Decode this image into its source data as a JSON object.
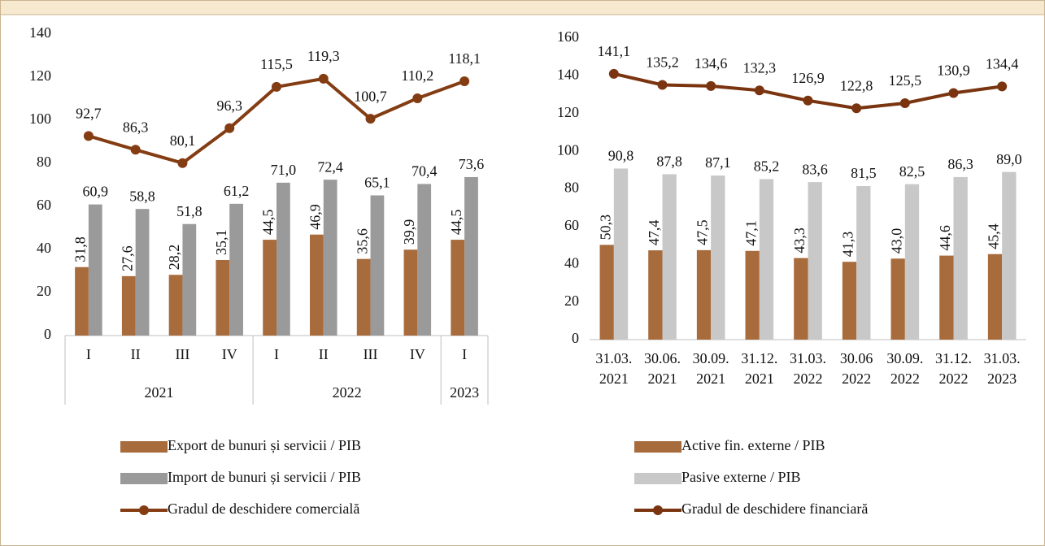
{
  "chart_data": [
    {
      "type": "combo",
      "categories": [
        "I",
        "II",
        "III",
        "IV",
        "I",
        "II",
        "III",
        "IV",
        "I"
      ],
      "groups": [
        {
          "label": "2021",
          "span": 4
        },
        {
          "label": "2022",
          "span": 4
        },
        {
          "label": "2023",
          "span": 1
        }
      ],
      "ylim": [
        0,
        140
      ],
      "yticks": [
        0,
        20,
        40,
        60,
        80,
        100,
        120,
        140
      ],
      "legend": "bottom",
      "series": [
        {
          "name": "Export de bunuri și servicii / PIB",
          "type": "bar",
          "color": "#a86b3c",
          "values": [
            31.8,
            27.6,
            28.2,
            35.1,
            44.5,
            46.9,
            35.6,
            39.9,
            44.5
          ],
          "value_labels": [
            "31,8",
            "27,6",
            "28,2",
            "35,1",
            "44,5",
            "46,9",
            "35,6",
            "39,9",
            "44,5"
          ]
        },
        {
          "name": "Import de bunuri și servicii / PIB",
          "type": "bar",
          "color": "#9a9a9a",
          "values": [
            60.9,
            58.8,
            51.8,
            61.2,
            71.0,
            72.4,
            65.1,
            70.4,
            73.6
          ],
          "value_labels": [
            "60,9",
            "58,8",
            "51,8",
            "61,2",
            "71,0",
            "72,4",
            "65,1",
            "70,4",
            "73,6"
          ]
        },
        {
          "name": "Gradul de deschidere comercială",
          "type": "line",
          "color": "#843c12",
          "values": [
            92.7,
            86.3,
            80.1,
            96.3,
            115.5,
            119.3,
            100.7,
            110.2,
            118.1
          ],
          "value_labels": [
            "92,7",
            "86,3",
            "80,1",
            "96,3",
            "115,5",
            "119,3",
            "100,7",
            "110,2",
            "118,1"
          ]
        }
      ]
    },
    {
      "type": "combo",
      "categories": [
        [
          "31.03.",
          "2021"
        ],
        [
          "30.06.",
          "2021"
        ],
        [
          "30.09.",
          "2021"
        ],
        [
          "31.12.",
          "2021"
        ],
        [
          "31.03.",
          "2022"
        ],
        [
          "30.06",
          "2022"
        ],
        [
          "30.09.",
          "2022"
        ],
        [
          "31.12.",
          "2022"
        ],
        [
          "31.03.",
          "2023"
        ]
      ],
      "ylim": [
        0,
        160
      ],
      "yticks": [
        0,
        20,
        40,
        60,
        80,
        100,
        120,
        140,
        160
      ],
      "legend": "bottom",
      "series": [
        {
          "name": "Active fin. externe / PIB",
          "type": "bar",
          "color": "#a86b3c",
          "values": [
            50.3,
            47.4,
            47.5,
            47.1,
            43.3,
            41.3,
            43.0,
            44.6,
            45.4
          ],
          "value_labels": [
            "50,3",
            "47,4",
            "47,5",
            "47,1",
            "43,3",
            "41,3",
            "43,0",
            "44,6",
            "45,4"
          ]
        },
        {
          "name": "Pasive externe / PIB",
          "type": "bar",
          "color": "#c8c8c8",
          "values": [
            90.8,
            87.8,
            87.1,
            85.2,
            83.6,
            81.5,
            82.5,
            86.3,
            89.0
          ],
          "value_labels": [
            "90,8",
            "87,8",
            "87,1",
            "85,2",
            "83,6",
            "81,5",
            "82,5",
            "86,3",
            "89,0"
          ]
        },
        {
          "name": "Gradul de deschidere financiară",
          "type": "line",
          "color": "#7a3510",
          "values": [
            141.1,
            135.2,
            134.6,
            132.3,
            126.9,
            122.8,
            125.5,
            130.9,
            134.4
          ],
          "value_labels": [
            "141,1",
            "135,2",
            "134,6",
            "132,3",
            "126,9",
            "122,8",
            "125,5",
            "130,9",
            "134,4"
          ]
        }
      ]
    }
  ]
}
